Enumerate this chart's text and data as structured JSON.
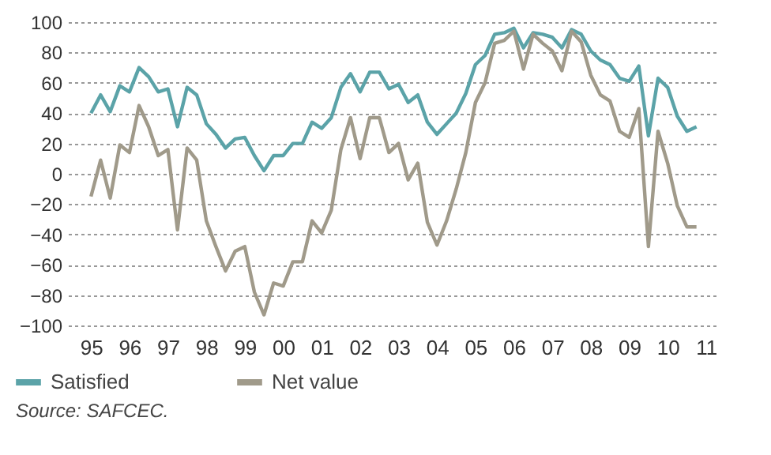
{
  "chart_data": {
    "type": "line",
    "x": [
      1995,
      1995.25,
      1995.5,
      1995.75,
      1996,
      1996.25,
      1996.5,
      1996.75,
      1997,
      1997.25,
      1997.5,
      1997.75,
      1998,
      1998.25,
      1998.5,
      1998.75,
      1999,
      1999.25,
      1999.5,
      1999.75,
      2000,
      2000.25,
      2000.5,
      2000.75,
      2001,
      2001.25,
      2001.5,
      2001.75,
      2002,
      2002.25,
      2002.5,
      2002.75,
      2003,
      2003.25,
      2003.5,
      2003.75,
      2004,
      2004.25,
      2004.5,
      2004.75,
      2005,
      2005.25,
      2005.5,
      2005.75,
      2006,
      2006.25,
      2006.5,
      2006.75,
      2007,
      2007.25,
      2007.5,
      2007.75,
      2008,
      2008.25,
      2008.5,
      2008.75,
      2009,
      2009.25,
      2009.5,
      2009.75,
      2010,
      2010.25,
      2010.5,
      2010.75
    ],
    "series": [
      {
        "name": "Satisfied",
        "color": "#5ba3a8",
        "values": [
          40,
          52,
          41,
          58,
          54,
          70,
          64,
          54,
          56,
          31,
          57,
          52,
          33,
          26,
          17,
          23,
          24,
          12,
          2,
          12,
          12,
          20,
          20,
          34,
          30,
          37,
          57,
          66,
          54,
          67,
          67,
          56,
          59,
          47,
          52,
          34,
          26,
          33,
          40,
          53,
          72,
          78,
          92,
          93,
          96,
          83,
          93,
          92,
          90,
          83,
          95,
          92,
          81,
          75,
          72,
          63,
          61,
          71,
          25,
          63,
          57,
          38,
          28,
          31
        ]
      },
      {
        "name": "Net value",
        "color": "#a09a8a",
        "values": [
          -15,
          9,
          -16,
          19,
          14,
          45,
          31,
          12,
          16,
          -37,
          17,
          9,
          -31,
          -48,
          -64,
          -51,
          -48,
          -78,
          -93,
          -72,
          -74,
          -58,
          -58,
          -31,
          -39,
          -24,
          16,
          37,
          10,
          37,
          37,
          14,
          20,
          -4,
          7,
          -32,
          -47,
          -31,
          -10,
          14,
          47,
          60,
          86,
          88,
          94,
          69,
          92,
          86,
          81,
          68,
          94,
          87,
          65,
          52,
          48,
          28,
          24,
          43,
          -48,
          28,
          7,
          -21,
          -35,
          -35
        ]
      }
    ],
    "xlim": [
      1994.4,
      2011.25
    ],
    "xticks": [
      {
        "value": 1995,
        "label": "95"
      },
      {
        "value": 1996,
        "label": "96"
      },
      {
        "value": 1997,
        "label": "97"
      },
      {
        "value": 1998,
        "label": "98"
      },
      {
        "value": 1999,
        "label": "99"
      },
      {
        "value": 2000,
        "label": "00"
      },
      {
        "value": 2001,
        "label": "01"
      },
      {
        "value": 2002,
        "label": "02"
      },
      {
        "value": 2003,
        "label": "03"
      },
      {
        "value": 2004,
        "label": "04"
      },
      {
        "value": 2005,
        "label": "05"
      },
      {
        "value": 2006,
        "label": "06"
      },
      {
        "value": 2007,
        "label": "07"
      },
      {
        "value": 2008,
        "label": "08"
      },
      {
        "value": 2009,
        "label": "09"
      },
      {
        "value": 2010,
        "label": "10"
      },
      {
        "value": 2011,
        "label": "11"
      }
    ],
    "ylim": [
      -100,
      100
    ],
    "yticks": [
      -100,
      -80,
      -60,
      -40,
      -20,
      0,
      20,
      40,
      60,
      80,
      100
    ],
    "grid": "y",
    "legend": "bottom left",
    "line_style": "solid",
    "annotations": [
      "Source: SAFCEC."
    ]
  }
}
